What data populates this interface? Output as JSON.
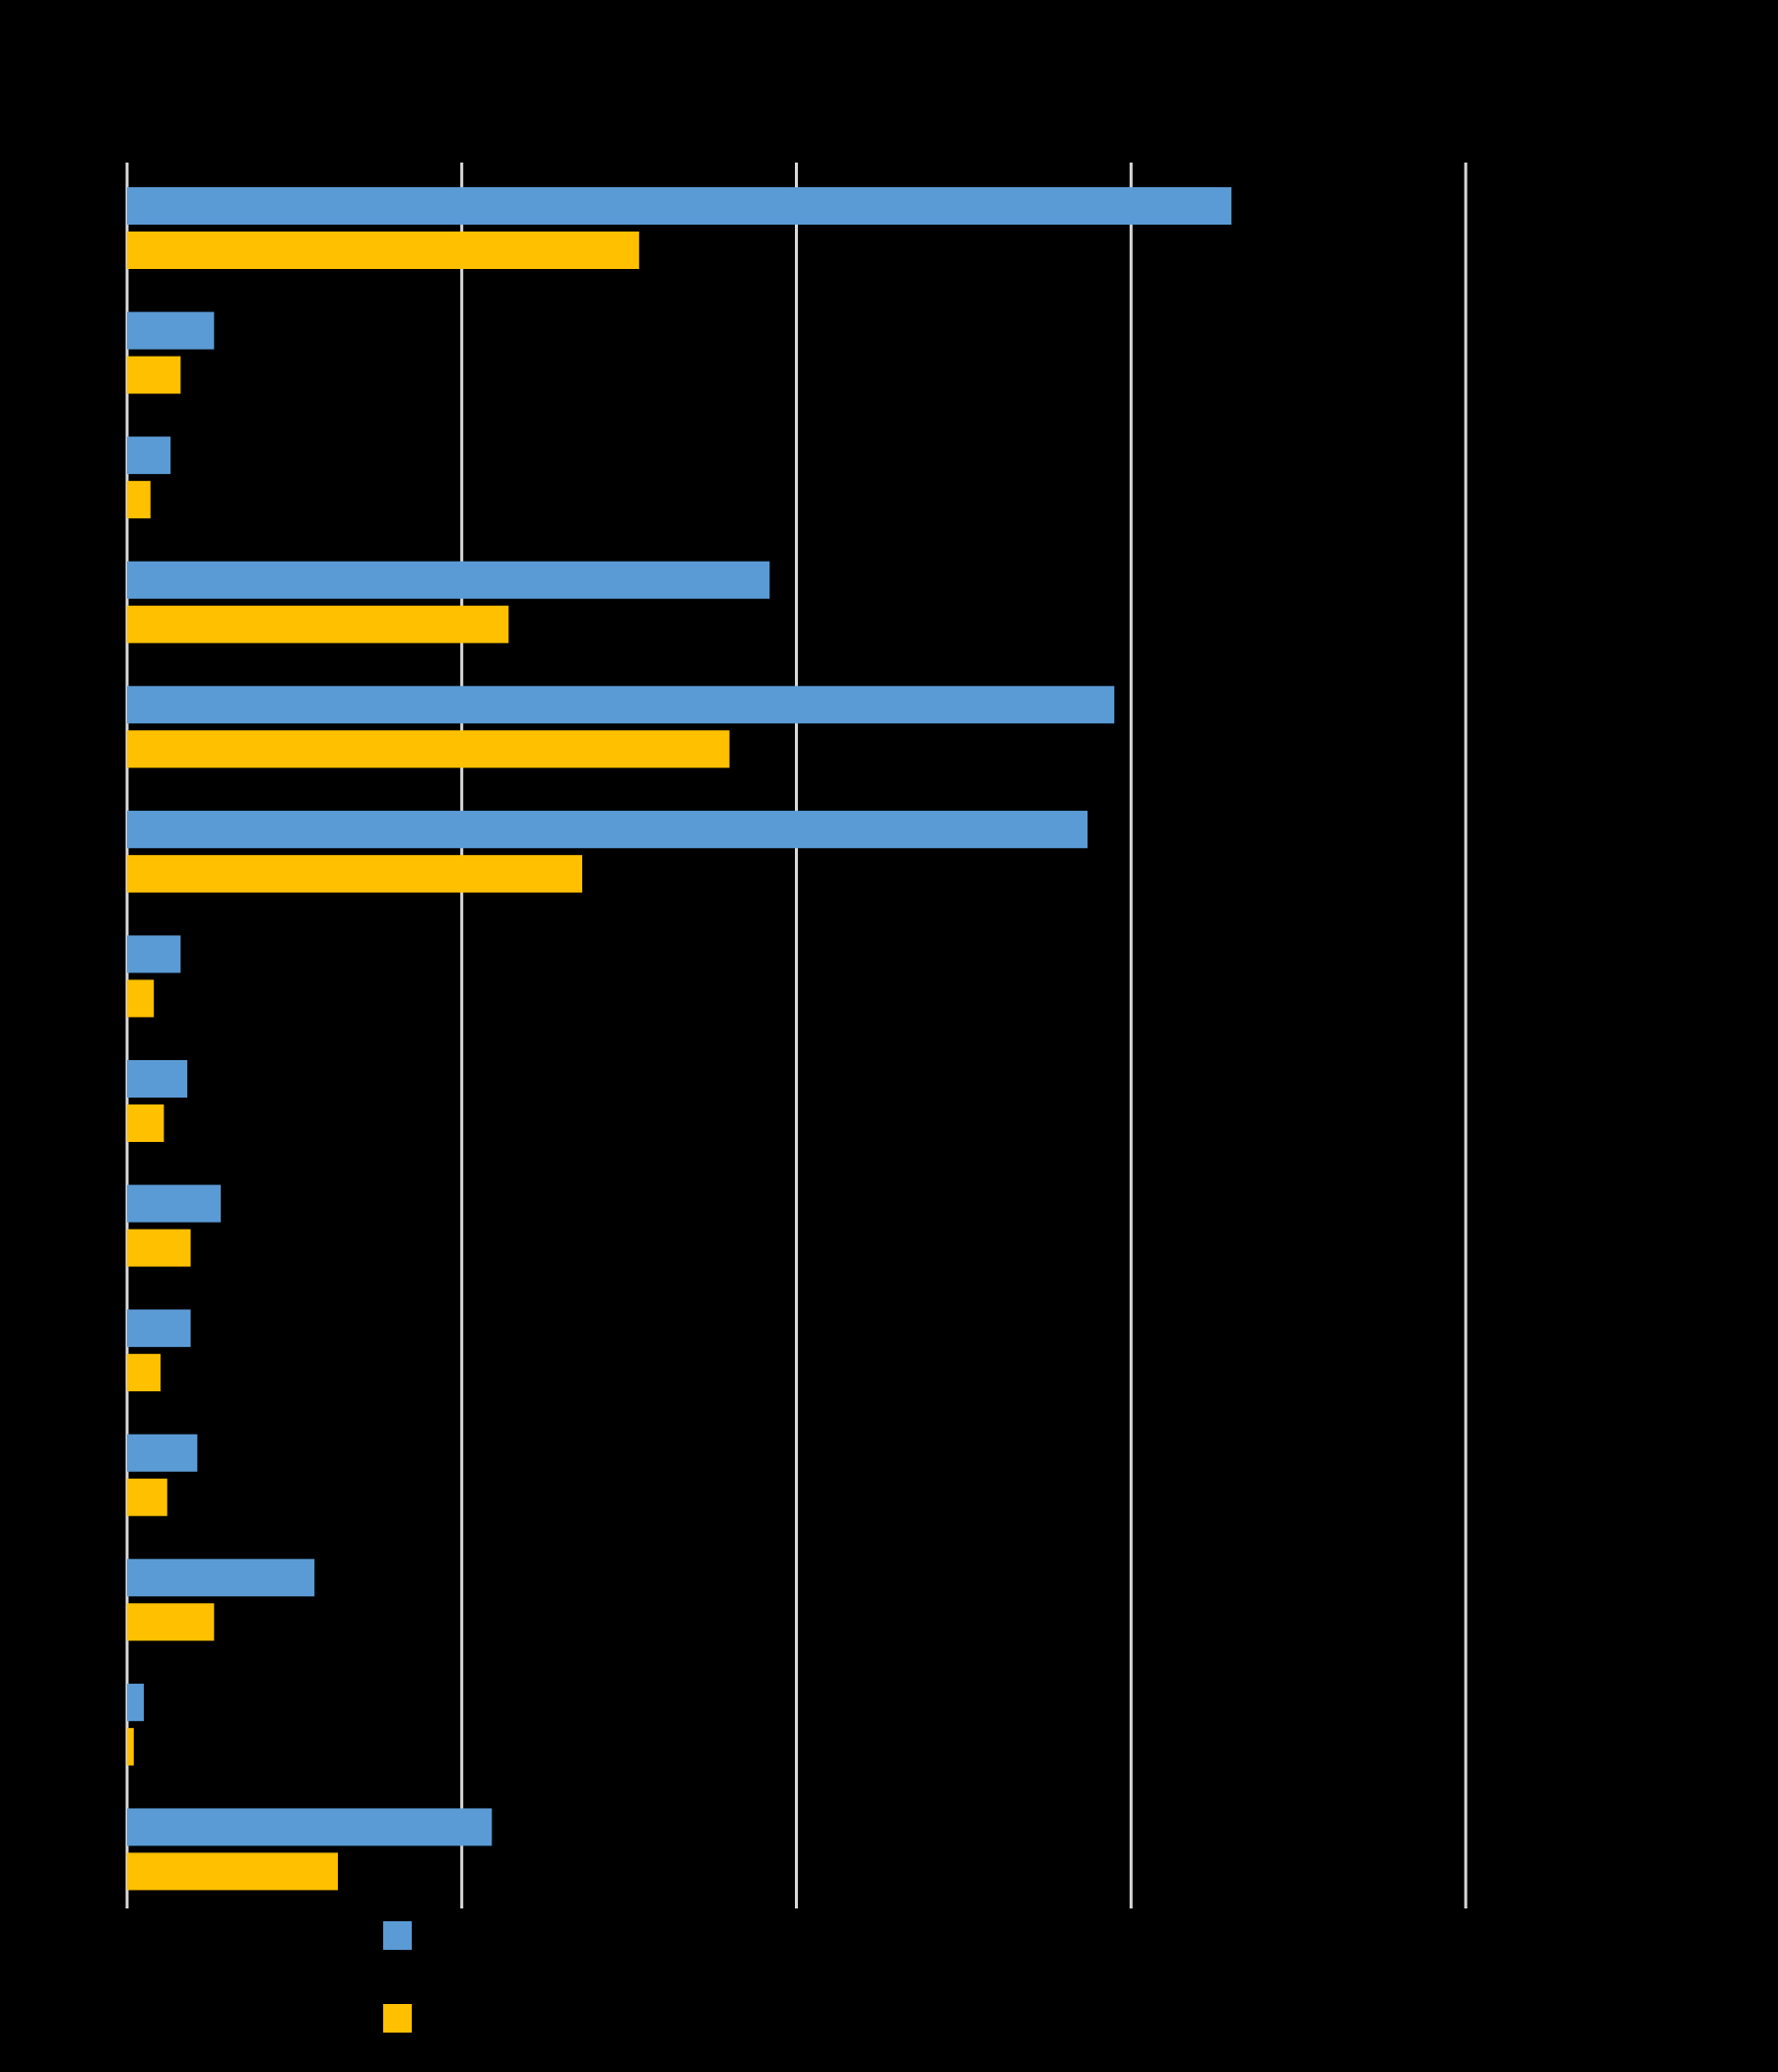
{
  "chart_data": {
    "type": "bar",
    "orientation": "horizontal",
    "title": "",
    "xlabel": "",
    "ylabel": "",
    "categories": [
      "",
      "",
      "",
      "",
      "",
      "",
      "",
      "",
      "",
      "",
      "",
      "",
      "",
      ""
    ],
    "xlim": [
      0,
      4
    ],
    "grid": true,
    "legend_position": "bottom",
    "series": [
      {
        "color": "#5B9BD5",
        "values": [
          3.3,
          0.26,
          0.13,
          1.92,
          2.95,
          2.87,
          0.16,
          0.18,
          0.28,
          0.19,
          0.21,
          0.56,
          0.05,
          1.09
        ]
      },
      {
        "color": "#FFC000",
        "values": [
          1.53,
          0.16,
          0.07,
          1.14,
          1.8,
          1.36,
          0.08,
          0.11,
          0.19,
          0.1,
          0.12,
          0.26,
          0.02,
          0.63
        ]
      }
    ],
    "gridline_color": "#D9D9D9",
    "background": "#000000"
  }
}
